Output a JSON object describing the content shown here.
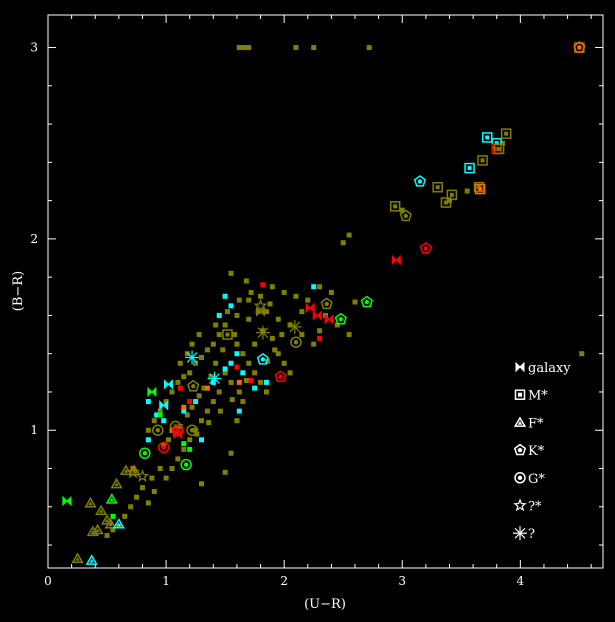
{
  "chart_data": {
    "type": "scatter",
    "title": "",
    "xlabel": "(U−R)",
    "ylabel": "(B−R)",
    "xlim": [
      0,
      4.7
    ],
    "ylim": [
      0.28,
      3.17
    ],
    "xticks": [
      0,
      1,
      2,
      3,
      4
    ],
    "yticks": [
      1,
      2,
      3
    ],
    "grid": false,
    "legend_position": "lower-right",
    "background": "#000000",
    "frame_color": "#ffffff",
    "legend": [
      {
        "label": "galaxy",
        "marker": "bowtie"
      },
      {
        "label": "M*",
        "marker": "square"
      },
      {
        "label": "F*",
        "marker": "triangle"
      },
      {
        "label": "K*",
        "marker": "pentagon"
      },
      {
        "label": "G*",
        "marker": "circle"
      },
      {
        "label": "?*",
        "marker": "star"
      },
      {
        "label": "?",
        "marker": "asterisk"
      }
    ],
    "series": [
      {
        "name": "unclassified",
        "marker": "dot",
        "color": "#808000",
        "points": [
          [
            1.62,
            3.0
          ],
          [
            1.66,
            3.0
          ],
          [
            1.7,
            3.0
          ],
          [
            2.1,
            3.0
          ],
          [
            2.25,
            3.0
          ],
          [
            2.72,
            3.0
          ],
          [
            4.52,
            1.4
          ],
          [
            2.5,
            1.98
          ],
          [
            2.55,
            2.02
          ],
          [
            2.3,
            1.75
          ],
          [
            2.4,
            1.72
          ],
          [
            2.6,
            1.67
          ],
          [
            2.2,
            1.68
          ],
          [
            2.35,
            1.6
          ],
          [
            2.1,
            1.7
          ],
          [
            2.0,
            1.72
          ],
          [
            1.9,
            1.75
          ],
          [
            1.8,
            1.7
          ],
          [
            1.7,
            1.68
          ],
          [
            1.55,
            1.82
          ],
          [
            1.68,
            1.78
          ],
          [
            1.85,
            1.62
          ],
          [
            1.95,
            1.58
          ],
          [
            2.05,
            1.55
          ],
          [
            2.15,
            1.5
          ],
          [
            2.25,
            1.45
          ],
          [
            1.6,
            1.6
          ],
          [
            1.5,
            1.55
          ],
          [
            1.45,
            1.5
          ],
          [
            1.4,
            1.45
          ],
          [
            1.35,
            1.42
          ],
          [
            1.3,
            1.38
          ],
          [
            1.25,
            1.35
          ],
          [
            1.2,
            1.3
          ],
          [
            1.15,
            1.28
          ],
          [
            1.1,
            1.25
          ],
          [
            1.05,
            1.2
          ],
          [
            1.0,
            1.15
          ],
          [
            0.95,
            1.1
          ],
          [
            0.9,
            1.05
          ],
          [
            0.85,
            1.0
          ],
          [
            1.6,
            1.45
          ],
          [
            1.65,
            1.4
          ],
          [
            1.7,
            1.35
          ],
          [
            1.75,
            1.3
          ],
          [
            1.8,
            1.25
          ],
          [
            1.85,
            1.2
          ],
          [
            1.5,
            1.3
          ],
          [
            1.55,
            1.25
          ],
          [
            1.45,
            1.2
          ],
          [
            1.4,
            1.15
          ],
          [
            1.35,
            1.1
          ],
          [
            1.3,
            1.05
          ],
          [
            1.25,
            1.0
          ],
          [
            1.2,
            0.95
          ],
          [
            1.15,
            0.9
          ],
          [
            1.1,
            0.85
          ],
          [
            1.05,
            0.8
          ],
          [
            1.0,
            0.75
          ],
          [
            0.8,
            0.7
          ],
          [
            0.75,
            0.65
          ],
          [
            0.7,
            0.6
          ],
          [
            0.65,
            0.55
          ],
          [
            0.6,
            0.5
          ],
          [
            0.55,
            0.48
          ],
          [
            0.5,
            0.45
          ],
          [
            0.85,
            0.62
          ],
          [
            0.9,
            0.68
          ],
          [
            1.3,
            0.72
          ],
          [
            1.5,
            0.78
          ],
          [
            1.55,
            0.88
          ],
          [
            1.6,
            1.05
          ],
          [
            1.65,
            1.15
          ],
          [
            1.75,
            1.45
          ],
          [
            1.82,
            1.52
          ],
          [
            1.9,
            1.48
          ],
          [
            1.95,
            1.4
          ],
          [
            2.0,
            1.35
          ],
          [
            2.05,
            1.3
          ],
          [
            1.7,
            1.58
          ],
          [
            1.78,
            1.62
          ],
          [
            1.88,
            1.66
          ],
          [
            1.58,
            1.5
          ],
          [
            1.48,
            1.42
          ],
          [
            1.42,
            1.35
          ],
          [
            1.38,
            1.28
          ],
          [
            1.32,
            1.22
          ],
          [
            1.28,
            1.18
          ],
          [
            1.22,
            1.12
          ],
          [
            1.18,
            1.08
          ],
          [
            1.12,
            1.02
          ],
          [
            1.08,
            0.98
          ],
          [
            1.02,
            0.95
          ],
          [
            0.98,
            0.92
          ],
          [
            1.42,
            1.55
          ],
          [
            1.52,
            1.62
          ],
          [
            1.62,
            1.68
          ],
          [
            1.72,
            1.72
          ],
          [
            1.22,
            1.45
          ],
          [
            1.18,
            1.4
          ],
          [
            1.12,
            1.35
          ],
          [
            1.28,
            1.5
          ],
          [
            2.45,
            1.55
          ],
          [
            2.55,
            1.5
          ],
          [
            2.15,
            1.62
          ],
          [
            2.3,
            1.52
          ],
          [
            1.98,
            1.5
          ],
          [
            1.92,
            1.42
          ],
          [
            1.86,
            1.36
          ],
          [
            1.68,
            1.26
          ],
          [
            1.62,
            1.2
          ],
          [
            1.56,
            1.16
          ],
          [
            1.46,
            1.1
          ],
          [
            1.36,
            1.04
          ],
          [
            1.26,
            0.98
          ],
          [
            0.95,
            0.8
          ],
          [
            0.88,
            0.75
          ],
          [
            3.55,
            2.25
          ],
          [
            3.4,
            2.2
          ],
          [
            3.0,
            2.15
          ],
          [
            3.85,
            2.5
          ]
        ]
      },
      {
        "name": "cyan",
        "marker": "dot",
        "color": "#00ffff",
        "points": [
          [
            1.55,
            1.65
          ],
          [
            1.5,
            1.7
          ],
          [
            1.45,
            1.6
          ],
          [
            1.6,
            1.4
          ],
          [
            1.55,
            1.35
          ],
          [
            1.4,
            1.25
          ],
          [
            1.65,
            1.3
          ],
          [
            1.75,
            1.22
          ],
          [
            1.85,
            1.25
          ],
          [
            1.25,
            1.15
          ],
          [
            1.15,
            1.1
          ],
          [
            1.05,
            1.0
          ],
          [
            0.98,
            1.05
          ],
          [
            0.85,
            1.15
          ],
          [
            0.92,
            1.08
          ],
          [
            2.25,
            1.75
          ],
          [
            1.3,
            0.95
          ],
          [
            0.85,
            0.95
          ],
          [
            1.5,
            1.32
          ],
          [
            1.62,
            1.1
          ]
        ]
      },
      {
        "name": "red",
        "marker": "dot",
        "color": "#ff0000",
        "points": [
          [
            1.82,
            1.76
          ],
          [
            1.2,
            1.15
          ],
          [
            1.6,
            1.33
          ],
          [
            1.4,
            1.28
          ],
          [
            2.3,
            1.48
          ],
          [
            1.72,
            1.26
          ],
          [
            1.12,
            1.22
          ]
        ]
      },
      {
        "name": "orange",
        "marker": "dot",
        "color": "#ff6600",
        "points": [
          [
            1.05,
            1.0
          ],
          [
            1.15,
            1.12
          ],
          [
            1.35,
            1.22
          ],
          [
            0.72,
            0.8
          ],
          [
            1.62,
            1.25
          ]
        ]
      },
      {
        "name": "green",
        "marker": "dot",
        "color": "#00ff00",
        "points": [
          [
            0.95,
            1.08
          ],
          [
            1.2,
            0.9
          ],
          [
            1.15,
            0.93
          ],
          [
            0.55,
            0.55
          ]
        ]
      },
      {
        "name": "galaxy",
        "marker": "bowtie",
        "points": [
          {
            "x": 2.22,
            "y": 1.64,
            "color": "#ff0000"
          },
          {
            "x": 2.28,
            "y": 1.6,
            "color": "#ff0000"
          },
          {
            "x": 2.38,
            "y": 1.58,
            "color": "#ff0000"
          },
          {
            "x": 2.95,
            "y": 1.89,
            "color": "#ff0000"
          },
          {
            "x": 1.02,
            "y": 1.24,
            "color": "#00ffff"
          },
          {
            "x": 0.98,
            "y": 1.13,
            "color": "#00ffff"
          },
          {
            "x": 0.88,
            "y": 1.2,
            "color": "#00ff00"
          },
          {
            "x": 0.16,
            "y": 0.63,
            "color": "#00ff00"
          },
          {
            "x": 1.8,
            "y": 1.62,
            "color": "#808000"
          },
          {
            "x": 1.1,
            "y": 0.98,
            "color": "#ff0000"
          }
        ]
      },
      {
        "name": "M*",
        "marker": "square",
        "points": [
          {
            "x": 3.72,
            "y": 2.53,
            "color": "#00ffff"
          },
          {
            "x": 3.57,
            "y": 2.37,
            "color": "#00ffff"
          },
          {
            "x": 3.8,
            "y": 2.5,
            "color": "#00ffff"
          },
          {
            "x": 3.8,
            "y": 2.47,
            "color": "#ff0000"
          },
          {
            "x": 3.88,
            "y": 2.55,
            "color": "#808000"
          },
          {
            "x": 3.82,
            "y": 2.47,
            "color": "#808000"
          },
          {
            "x": 3.68,
            "y": 2.41,
            "color": "#808000"
          },
          {
            "x": 3.3,
            "y": 2.27,
            "color": "#808000"
          },
          {
            "x": 3.37,
            "y": 2.19,
            "color": "#808000"
          },
          {
            "x": 3.42,
            "y": 2.23,
            "color": "#808000"
          },
          {
            "x": 3.65,
            "y": 2.27,
            "color": "#808000"
          },
          {
            "x": 3.66,
            "y": 2.26,
            "color": "#ff6600"
          },
          {
            "x": 2.94,
            "y": 2.17,
            "color": "#808000"
          },
          {
            "x": 1.52,
            "y": 1.5,
            "color": "#808000"
          },
          {
            "x": 4.5,
            "y": 3.0,
            "color": "#808000"
          }
        ]
      },
      {
        "name": "F*",
        "marker": "triangle",
        "points": [
          {
            "x": 0.25,
            "y": 0.33,
            "color": "#808000"
          },
          {
            "x": 0.37,
            "y": 0.32,
            "color": "#00ffff"
          },
          {
            "x": 0.38,
            "y": 0.47,
            "color": "#808000"
          },
          {
            "x": 0.42,
            "y": 0.48,
            "color": "#808000"
          },
          {
            "x": 0.5,
            "y": 0.53,
            "color": "#808000"
          },
          {
            "x": 0.53,
            "y": 0.51,
            "color": "#808000"
          },
          {
            "x": 0.6,
            "y": 0.51,
            "color": "#00ffff"
          },
          {
            "x": 0.36,
            "y": 0.62,
            "color": "#808000"
          },
          {
            "x": 0.45,
            "y": 0.58,
            "color": "#808000"
          },
          {
            "x": 0.54,
            "y": 0.64,
            "color": "#00ff00"
          },
          {
            "x": 0.58,
            "y": 0.72,
            "color": "#808000"
          },
          {
            "x": 0.66,
            "y": 0.79,
            "color": "#808000"
          },
          {
            "x": 0.73,
            "y": 0.79,
            "color": "#808000"
          }
        ]
      },
      {
        "name": "K*",
        "marker": "pentagon",
        "points": [
          {
            "x": 4.5,
            "y": 3.0,
            "color": "#ff6600"
          },
          {
            "x": 3.15,
            "y": 2.3,
            "color": "#00ffff"
          },
          {
            "x": 3.2,
            "y": 1.95,
            "color": "#ff0000"
          },
          {
            "x": 3.03,
            "y": 2.12,
            "color": "#808000"
          },
          {
            "x": 2.7,
            "y": 1.67,
            "color": "#00ff00"
          },
          {
            "x": 2.48,
            "y": 1.58,
            "color": "#00ff00"
          },
          {
            "x": 2.36,
            "y": 1.66,
            "color": "#808000"
          },
          {
            "x": 1.97,
            "y": 1.28,
            "color": "#ff0000"
          },
          {
            "x": 1.82,
            "y": 1.37,
            "color": "#00ffff"
          },
          {
            "x": 1.23,
            "y": 1.23,
            "color": "#808000"
          }
        ]
      },
      {
        "name": "G*",
        "marker": "circle",
        "points": [
          {
            "x": 0.82,
            "y": 0.88,
            "color": "#00ff00"
          },
          {
            "x": 0.98,
            "y": 0.91,
            "color": "#ff0000"
          },
          {
            "x": 1.17,
            "y": 0.82,
            "color": "#00ff00"
          },
          {
            "x": 0.93,
            "y": 1.0,
            "color": "#808000"
          },
          {
            "x": 1.08,
            "y": 1.02,
            "color": "#808000"
          },
          {
            "x": 1.1,
            "y": 1.0,
            "color": "#ff0000"
          },
          {
            "x": 2.1,
            "y": 1.46,
            "color": "#808000"
          },
          {
            "x": 1.22,
            "y": 1.0,
            "color": "#808000"
          }
        ]
      },
      {
        "name": "?*",
        "marker": "star",
        "points": [
          {
            "x": 0.8,
            "y": 0.76,
            "color": "#808000"
          },
          {
            "x": 0.72,
            "y": 0.78,
            "color": "#808000"
          },
          {
            "x": 1.8,
            "y": 1.65,
            "color": "#808000"
          }
        ]
      },
      {
        "name": "?",
        "marker": "asterisk",
        "points": [
          {
            "x": 1.22,
            "y": 1.38,
            "color": "#00ffff"
          },
          {
            "x": 1.41,
            "y": 1.27,
            "color": "#00ffff"
          },
          {
            "x": 1.82,
            "y": 1.51,
            "color": "#808000"
          },
          {
            "x": 2.09,
            "y": 1.54,
            "color": "#808000"
          }
        ]
      }
    ]
  }
}
